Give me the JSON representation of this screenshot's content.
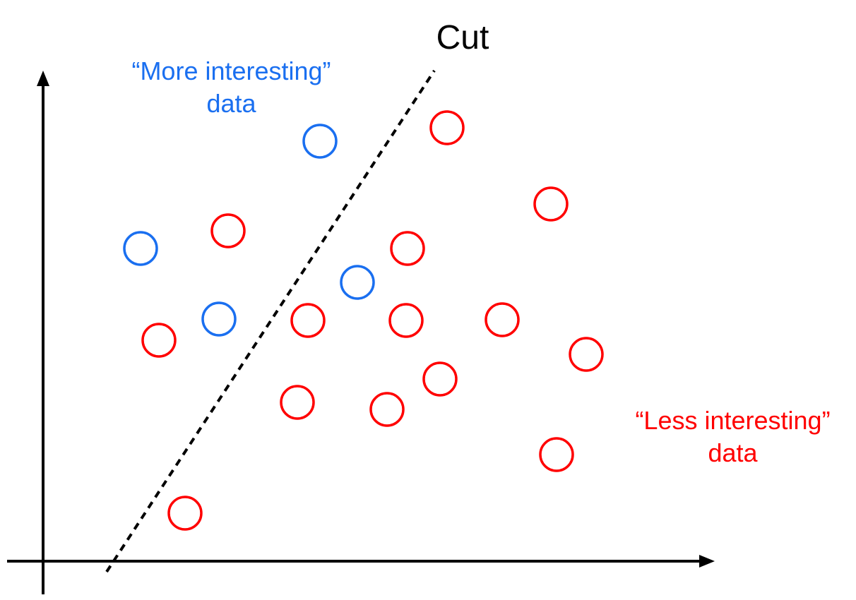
{
  "labels": {
    "cut": "Cut",
    "more_line1": "“More interesting”",
    "more_line2": "data",
    "less_line1": "“Less interesting”",
    "less_line2": "data"
  },
  "colors": {
    "more_interesting": "#1a6ff0",
    "less_interesting": "#ff0000",
    "axes": "#000000",
    "cut_line": "#000000"
  },
  "points": {
    "more_interesting_count": 4,
    "less_interesting_count": 14
  },
  "icons": {
    "x_axis": "arrow-right",
    "y_axis": "arrow-up",
    "cut": "dashed-line"
  }
}
